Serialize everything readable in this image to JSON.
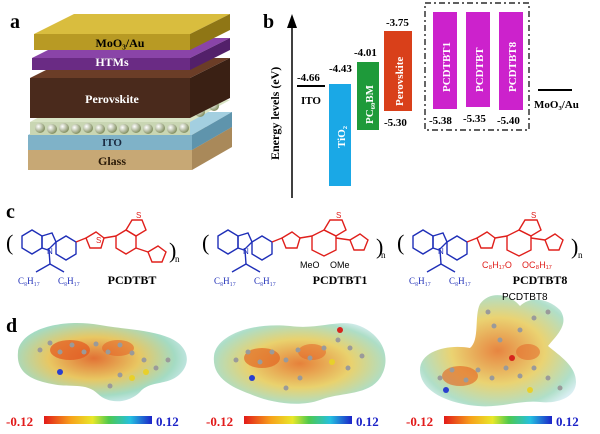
{
  "panels": {
    "a": "a",
    "b": "b",
    "c": "c",
    "d": "d"
  },
  "device_layers": {
    "top": "MoO₃/Au",
    "htm": "HTMs",
    "perovskite": "Perovskite",
    "ito": "ITO",
    "glass": "Glass"
  },
  "energy": {
    "ylabel": "Energy levels (eV)",
    "ito_value": "-4.66",
    "ito_label": "ITO",
    "tio2_top": "-4.43",
    "tio2_label": "TiO₂",
    "pcbm_top": "-4.01",
    "pcbm_label": "PC₆₀BM",
    "perov_top": "-3.75",
    "perov_label": "Perovskite",
    "perov_bottom": "-5.30",
    "pcdtbt1_label": "PCDTBT1",
    "pcdtbt_label": "PCDTBT",
    "pcdtbt8_label": "PCDTBT8",
    "pcdtbt1_homo": "-5.38",
    "pcdtbt_homo": "-5.35",
    "pcdtbt8_homo": "-5.40",
    "moo3_label": "MoO₃/Au"
  },
  "structures": {
    "pcdtbt_name": "PCDTBT",
    "pcdtbt1_name": "PCDTBT1",
    "pcdtbt8_name": "PCDTBT8",
    "sidechain": "C₈H₁₇",
    "n_sub": "n",
    "n_atom": "N",
    "s_atom": "S",
    "meo": "MeO",
    "ome": "OMe",
    "oc8_left": "C₈H₁₇O",
    "oc8_right": "OC₈H₁₇"
  },
  "esp": {
    "overlay_label": "PCDTBT8",
    "scale_min": "-0.12",
    "scale_max": "0.12"
  },
  "colors": {
    "carbazole": "#1f2fb8",
    "btd": "#e0201c",
    "tio2": "#1aa8e6",
    "pcbm": "#1e9a3a",
    "perovskite": "#d9401a",
    "pcdtbt": "#cc22cc"
  }
}
